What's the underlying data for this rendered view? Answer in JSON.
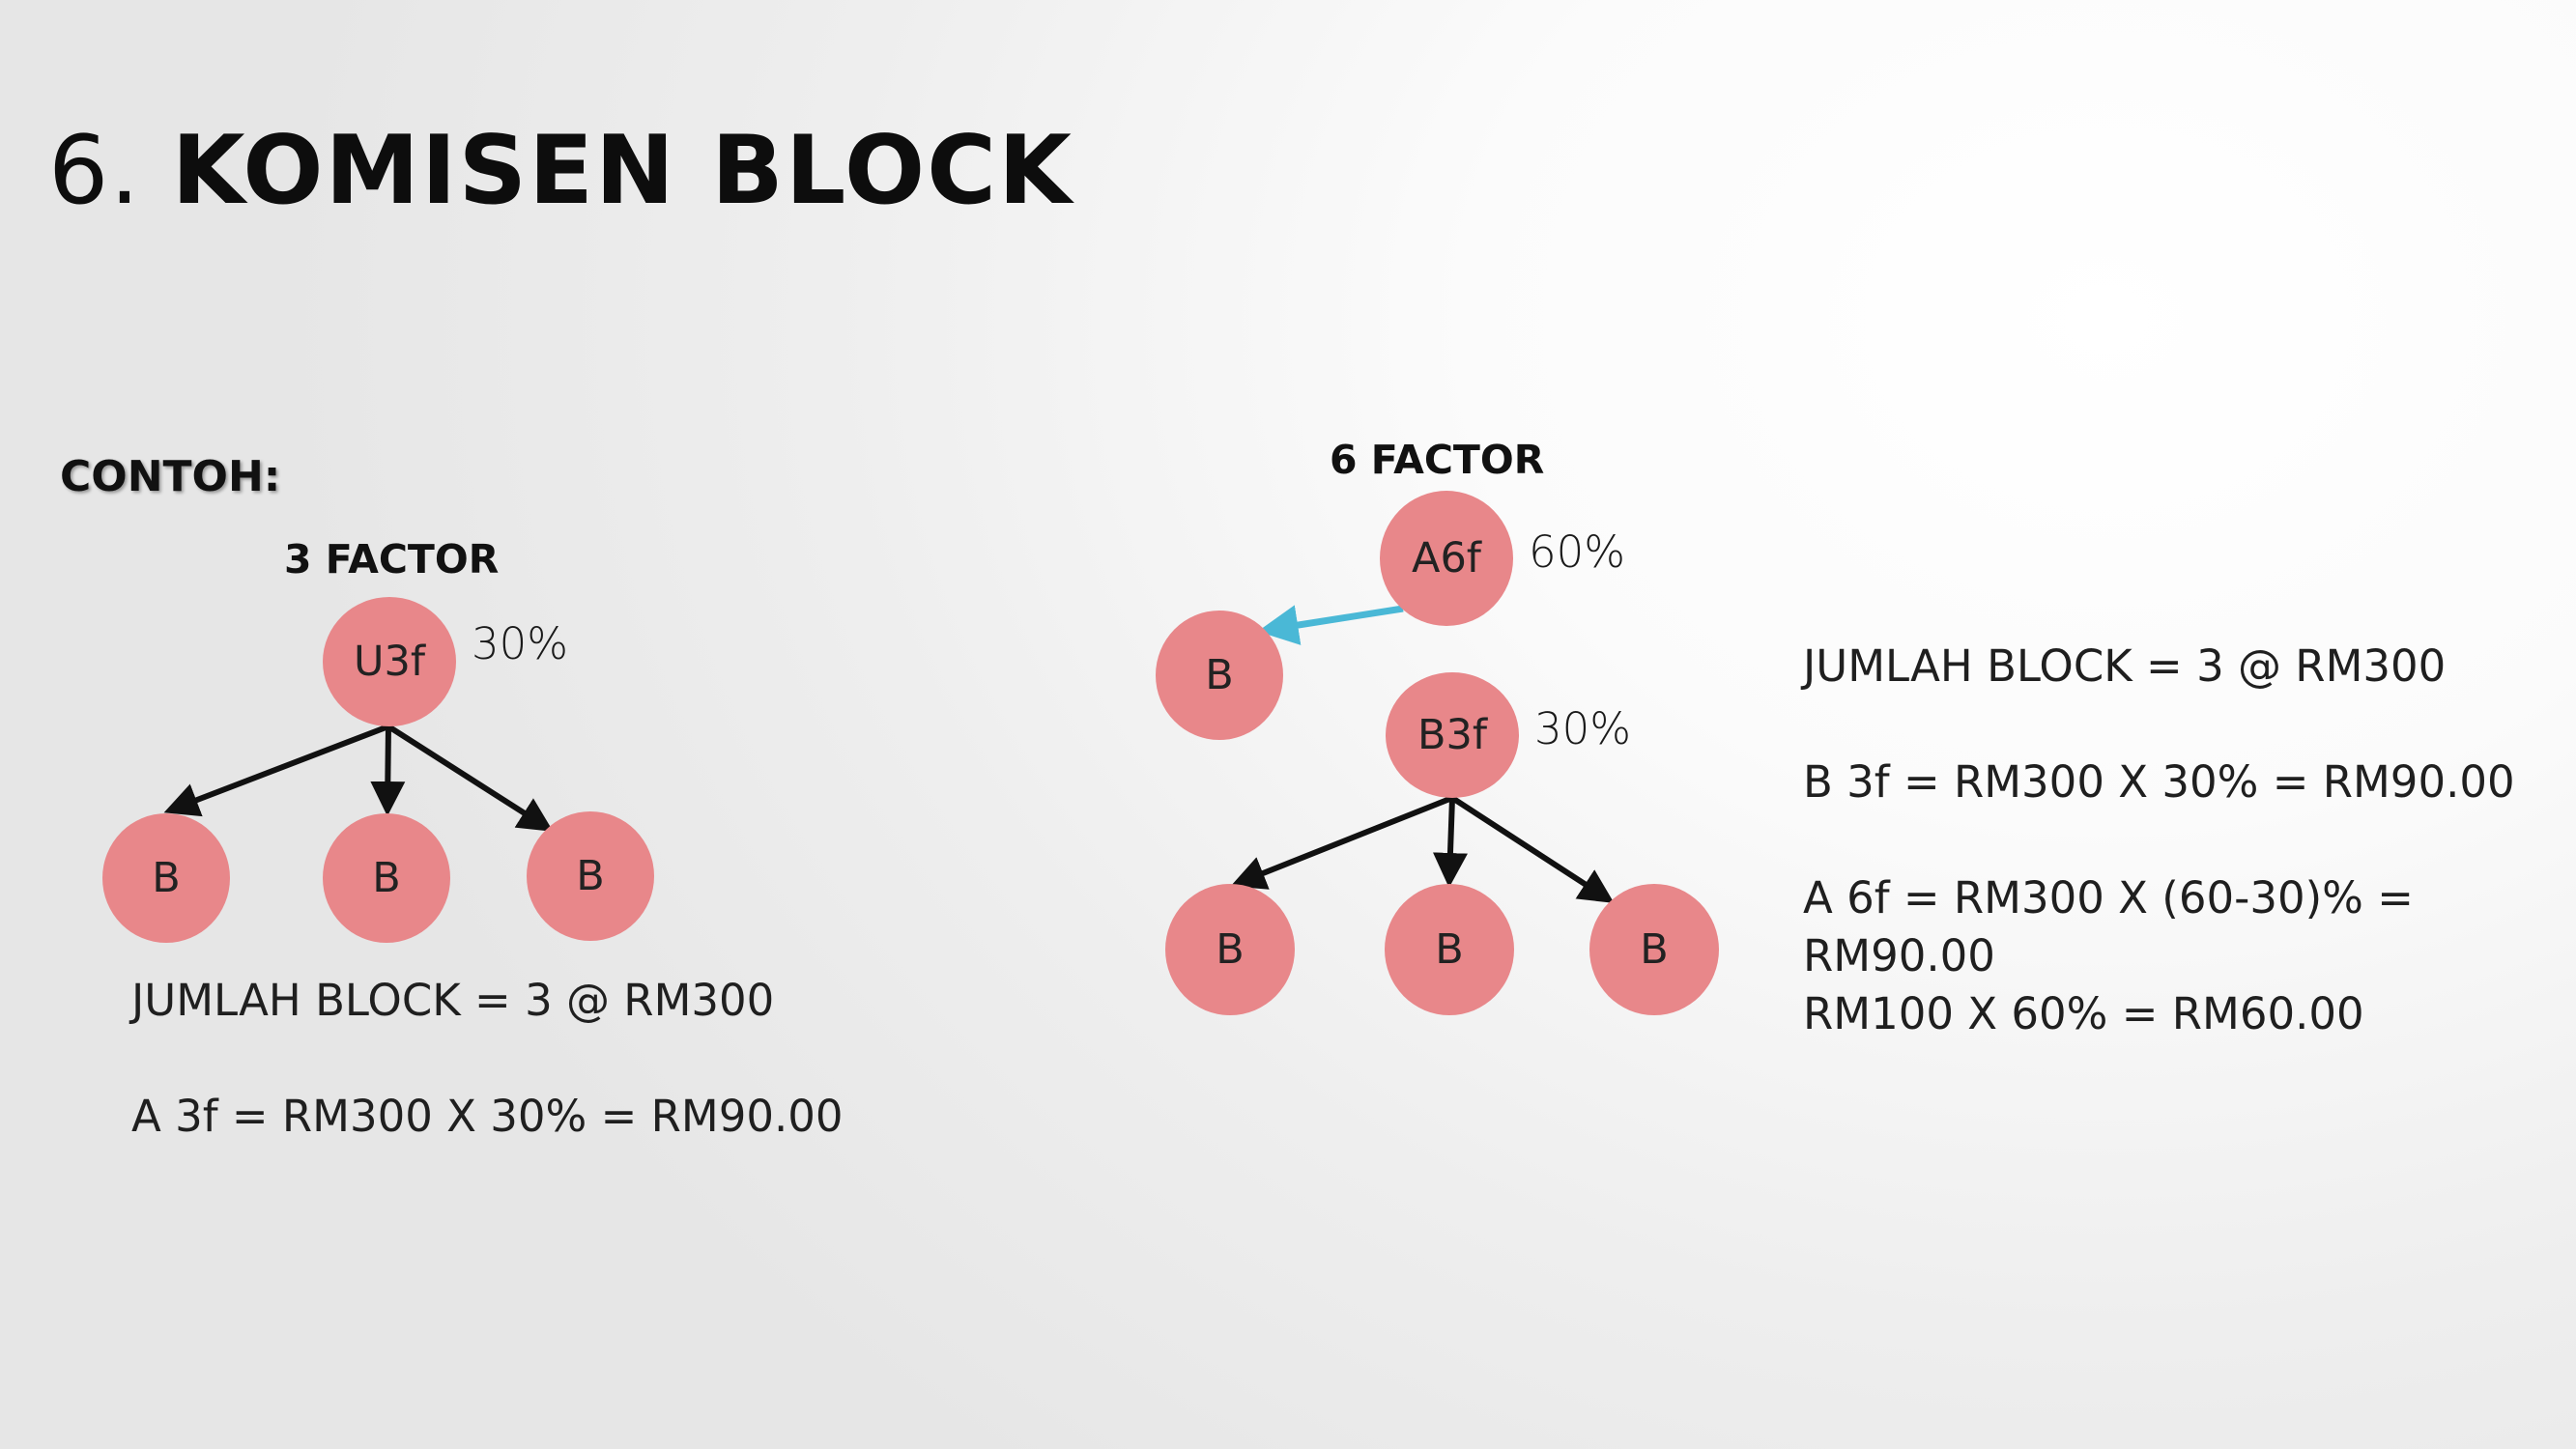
{
  "slide": {
    "title_number": "6.",
    "title_bold": "KOMISEN BLOCK",
    "contoh_label": "CONTOH:"
  },
  "left_example": {
    "factor_label": "3 FACTOR",
    "root_node": "U3f",
    "root_percent": "30%",
    "child_nodes": [
      "B",
      "B",
      "B"
    ],
    "lines": [
      "JUMLAH BLOCK = 3 @ RM300",
      "A 3f = RM300 X 30% = RM90.00"
    ]
  },
  "right_example": {
    "factor_label": "6 FACTOR",
    "top_node": "A6f",
    "top_percent": "60%",
    "side_node": "B",
    "mid_node": "B3f",
    "mid_percent": "30%",
    "child_nodes": [
      "B",
      "B",
      "B"
    ],
    "lines": [
      "JUMLAH BLOCK = 3 @ RM300",
      "B 3f = RM300 X 30% = RM90.00",
      "A 6f = RM300 X (60-30)% =",
      "RM90.00",
      "RM100 X 60% = RM60.00"
    ]
  },
  "colors": {
    "node_fill": "#e8878a",
    "arrow_black": "#111111",
    "arrow_blue": "#4ab8d6"
  }
}
